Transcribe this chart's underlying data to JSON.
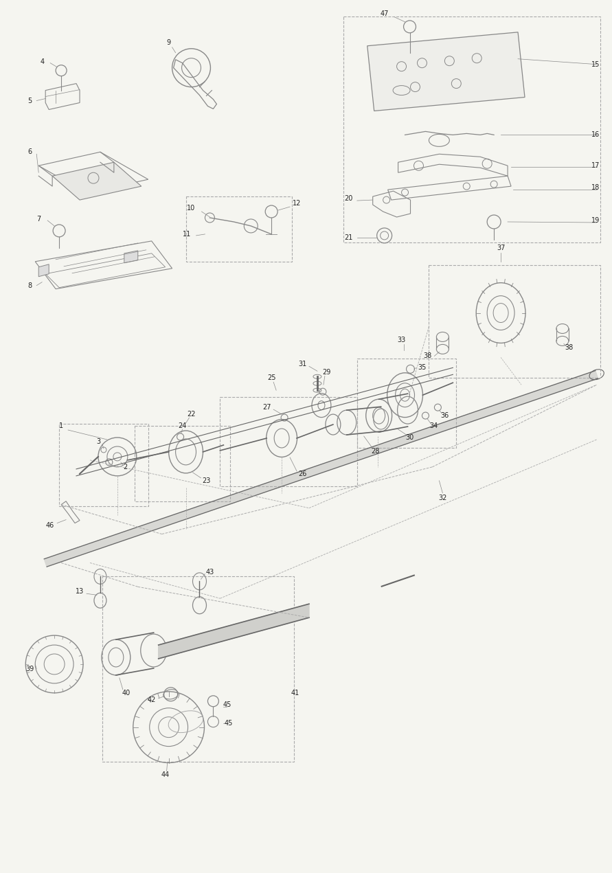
{
  "bg_color": "#f5f5f0",
  "line_color": "#888888",
  "dark_line": "#666666",
  "light_line": "#aaaaaa",
  "dashed_color": "#aaaaaa",
  "label_color": "#222222",
  "fig_width": 8.91,
  "fig_height": 12.71,
  "dpi": 100
}
